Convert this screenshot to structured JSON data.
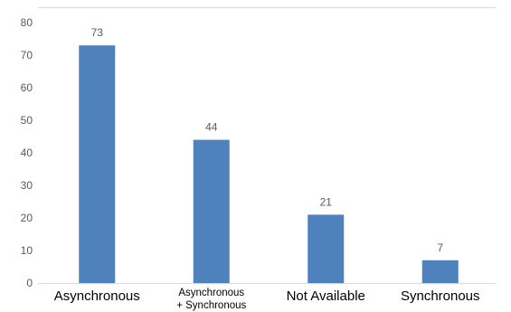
{
  "chart_data": {
    "type": "bar",
    "categories": [
      [
        "Asynchronous"
      ],
      [
        "Asynchronous",
        "+ Synchronous"
      ],
      [
        "Not Available"
      ],
      [
        "Synchronous"
      ]
    ],
    "values": [
      73,
      44,
      21,
      7
    ],
    "y_ticks": [
      "0",
      "10",
      "20",
      "30",
      "40",
      "50",
      "60",
      "70",
      "80"
    ],
    "ylim": [
      0,
      80
    ],
    "ytick_step": 10,
    "title": "",
    "xlabel": "",
    "ylabel": "",
    "legend": "none",
    "grid": "horizontal-top-line",
    "colors": {
      "bar": "#4f81bd",
      "axis": "#d9d9d9",
      "label": "#595959",
      "category": "#000000"
    }
  }
}
